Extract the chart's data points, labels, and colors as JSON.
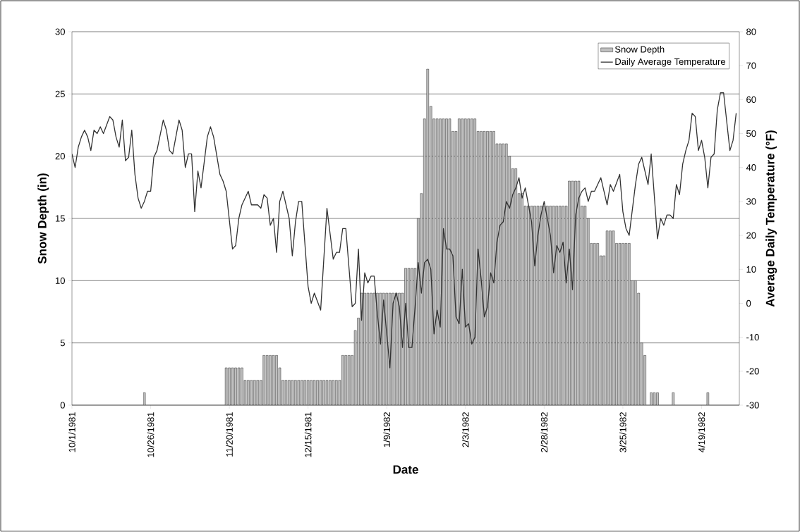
{
  "chart_data": {
    "type": "bar",
    "xlabel": "Date",
    "ylabel": "Snow Depth (in)",
    "y2label": "Average Daily Temperature (°F)",
    "xlim": [
      "1981-10-01",
      "1982-05-01"
    ],
    "xticks": [
      {
        "value": "1981-10-01",
        "label": "10/1/1981"
      },
      {
        "value": "1981-10-26",
        "label": "10/26/1981"
      },
      {
        "value": "1981-11-20",
        "label": "11/20/1981"
      },
      {
        "value": "1981-12-15",
        "label": "12/15/1981"
      },
      {
        "value": "1982-01-09",
        "label": "1/9/1982"
      },
      {
        "value": "1982-02-03",
        "label": "2/3/1982"
      },
      {
        "value": "1982-02-28",
        "label": "2/28/1982"
      },
      {
        "value": "1982-03-25",
        "label": "3/25/1982"
      },
      {
        "value": "1982-04-19",
        "label": "4/19/1982"
      }
    ],
    "ylim": [
      0,
      30
    ],
    "yticks": [
      0,
      5,
      10,
      15,
      20,
      25,
      30
    ],
    "y2lim": [
      -30,
      80
    ],
    "y2ticks": [
      -30,
      -20,
      -10,
      0,
      10,
      20,
      30,
      40,
      50,
      60,
      70,
      80
    ],
    "grid": "y",
    "legend": "top right",
    "series": [
      {
        "name": "Snow Depth",
        "color": "#c0c0c0",
        "x": [
          "1981-10-24",
          "1981-11-19",
          "1981-11-20",
          "1981-11-21",
          "1981-11-22",
          "1981-11-23",
          "1981-11-24",
          "1981-11-25",
          "1981-11-26",
          "1981-11-27",
          "1981-11-28",
          "1981-11-29",
          "1981-11-30",
          "1981-12-01",
          "1981-12-02",
          "1981-12-03",
          "1981-12-04",
          "1981-12-05",
          "1981-12-06",
          "1981-12-07",
          "1981-12-08",
          "1981-12-09",
          "1981-12-10",
          "1981-12-11",
          "1981-12-12",
          "1981-12-13",
          "1981-12-14",
          "1981-12-15",
          "1981-12-16",
          "1981-12-17",
          "1981-12-18",
          "1981-12-19",
          "1981-12-20",
          "1981-12-21",
          "1981-12-22",
          "1981-12-23",
          "1981-12-24",
          "1981-12-25",
          "1981-12-26",
          "1981-12-27",
          "1981-12-28",
          "1981-12-29",
          "1981-12-30",
          "1981-12-31",
          "1982-01-01",
          "1982-01-02",
          "1982-01-03",
          "1982-01-04",
          "1982-01-05",
          "1982-01-06",
          "1982-01-07",
          "1982-01-08",
          "1982-01-09",
          "1982-01-10",
          "1982-01-11",
          "1982-01-12",
          "1982-01-13",
          "1982-01-14",
          "1982-01-15",
          "1982-01-16",
          "1982-01-17",
          "1982-01-18",
          "1982-01-19",
          "1982-01-20",
          "1982-01-21",
          "1982-01-22",
          "1982-01-23",
          "1982-01-24",
          "1982-01-25",
          "1982-01-26",
          "1982-01-27",
          "1982-01-28",
          "1982-01-29",
          "1982-01-30",
          "1982-01-31",
          "1982-02-01",
          "1982-02-02",
          "1982-02-03",
          "1982-02-04",
          "1982-02-05",
          "1982-02-06",
          "1982-02-07",
          "1982-02-08",
          "1982-02-09",
          "1982-02-10",
          "1982-02-11",
          "1982-02-12",
          "1982-02-13",
          "1982-02-14",
          "1982-02-15",
          "1982-02-16",
          "1982-02-17",
          "1982-02-18",
          "1982-02-19",
          "1982-02-20",
          "1982-02-21",
          "1982-02-22",
          "1982-02-23",
          "1982-02-24",
          "1982-02-25",
          "1982-02-26",
          "1982-02-27",
          "1982-02-28",
          "1982-03-01",
          "1982-03-02",
          "1982-03-03",
          "1982-03-04",
          "1982-03-05",
          "1982-03-06",
          "1982-03-07",
          "1982-03-08",
          "1982-03-09",
          "1982-03-10",
          "1982-03-11",
          "1982-03-12",
          "1982-03-13",
          "1982-03-14",
          "1982-03-15",
          "1982-03-16",
          "1982-03-17",
          "1982-03-18",
          "1982-03-19",
          "1982-03-20",
          "1982-03-21",
          "1982-03-22",
          "1982-03-23",
          "1982-03-24",
          "1982-03-25",
          "1982-03-26",
          "1982-03-27",
          "1982-03-28",
          "1982-03-29",
          "1982-03-30",
          "1982-03-31",
          "1982-04-01",
          "1982-04-03",
          "1982-04-04",
          "1982-04-05",
          "1982-04-10",
          "1982-04-21"
        ],
        "values": [
          1,
          3,
          3,
          3,
          3,
          3,
          3,
          2,
          2,
          2,
          2,
          2,
          2,
          4,
          4,
          4,
          4,
          4,
          3,
          2,
          2,
          2,
          2,
          2,
          2,
          2,
          2,
          2,
          2,
          2,
          2,
          2,
          2,
          2,
          2,
          2,
          2,
          2,
          4,
          4,
          4,
          4,
          6,
          7,
          9,
          9,
          9,
          9,
          9,
          9,
          9,
          9,
          9,
          9,
          9,
          9,
          9,
          9,
          11,
          11,
          11,
          11,
          15,
          17,
          23,
          27,
          24,
          23,
          23,
          23,
          23,
          23,
          23,
          22,
          22,
          23,
          23,
          23,
          23,
          23,
          23,
          22,
          22,
          22,
          22,
          22,
          22,
          21,
          21,
          21,
          21,
          20,
          19,
          19,
          17,
          17,
          16,
          16,
          16,
          16,
          16,
          16,
          16,
          16,
          16,
          16,
          16,
          16,
          16,
          16,
          18,
          18,
          18,
          18,
          16,
          16,
          15,
          13,
          13,
          13,
          12,
          12,
          14,
          14,
          14,
          13,
          13,
          13,
          13,
          13,
          10,
          10,
          9,
          5,
          4,
          1,
          1,
          1,
          1,
          1
        ]
      },
      {
        "name": "Daily Average Temperature",
        "type": "line",
        "axis": "y2",
        "color": "#333333",
        "x": [
          "1981-10-01",
          "1981-10-02",
          "1981-10-03",
          "1981-10-04",
          "1981-10-05",
          "1981-10-06",
          "1981-10-07",
          "1981-10-08",
          "1981-10-09",
          "1981-10-10",
          "1981-10-11",
          "1981-10-13",
          "1981-10-14",
          "1981-10-15",
          "1981-10-16",
          "1981-10-17",
          "1981-10-18",
          "1981-10-19",
          "1981-10-20",
          "1981-10-21",
          "1981-10-22",
          "1981-10-23",
          "1981-10-24",
          "1981-10-25",
          "1981-10-26",
          "1981-10-27",
          "1981-10-28",
          "1981-10-30",
          "1981-10-31",
          "1981-11-01",
          "1981-11-02",
          "1981-11-04",
          "1981-11-05",
          "1981-11-06",
          "1981-11-07",
          "1981-11-08",
          "1981-11-09",
          "1981-11-10",
          "1981-11-11",
          "1981-11-13",
          "1981-11-14",
          "1981-11-15",
          "1981-11-17",
          "1981-11-18",
          "1981-11-19",
          "1981-11-21",
          "1981-11-22",
          "1981-11-23",
          "1981-11-24",
          "1981-11-26",
          "1981-11-27",
          "1981-11-29",
          "1981-11-30",
          "1981-12-01",
          "1981-12-02",
          "1981-12-03",
          "1981-12-04",
          "1981-12-05",
          "1981-12-06",
          "1981-12-07",
          "1981-12-09",
          "1981-12-10",
          "1981-12-11",
          "1981-12-12",
          "1981-12-13",
          "1981-12-15",
          "1981-12-16",
          "1981-12-17",
          "1981-12-19",
          "1981-12-21",
          "1981-12-23",
          "1981-12-24",
          "1981-12-25",
          "1981-12-26",
          "1981-12-27",
          "1981-12-29",
          "1981-12-30",
          "1981-12-31",
          "1982-01-01",
          "1982-01-02",
          "1982-01-03",
          "1982-01-04",
          "1982-01-05",
          "1982-01-06",
          "1982-01-07",
          "1982-01-08",
          "1982-01-09",
          "1982-01-10",
          "1982-01-11",
          "1982-01-12",
          "1982-01-13",
          "1982-01-14",
          "1982-01-15",
          "1982-01-16",
          "1982-01-17",
          "1982-01-18",
          "1982-01-19",
          "1982-01-20",
          "1982-01-21",
          "1982-01-22",
          "1982-01-23",
          "1982-01-24",
          "1982-01-25",
          "1982-01-26",
          "1982-01-27",
          "1982-01-28",
          "1982-01-29",
          "1982-01-30",
          "1982-01-31",
          "1982-02-01",
          "1982-02-02",
          "1982-02-03",
          "1982-02-04",
          "1982-02-05",
          "1982-02-06",
          "1982-02-07",
          "1982-02-08",
          "1982-02-09",
          "1982-02-10",
          "1982-02-11",
          "1982-02-12",
          "1982-02-13",
          "1982-02-14",
          "1982-02-15",
          "1982-02-16",
          "1982-02-17",
          "1982-02-18",
          "1982-02-19",
          "1982-02-20",
          "1982-02-21",
          "1982-02-22",
          "1982-02-23",
          "1982-02-24",
          "1982-02-25",
          "1982-02-26",
          "1982-02-27",
          "1982-02-28",
          "1982-03-01",
          "1982-03-02",
          "1982-03-03",
          "1982-03-04",
          "1982-03-05",
          "1982-03-06",
          "1982-03-07",
          "1982-03-08",
          "1982-03-09",
          "1982-03-10",
          "1982-03-11",
          "1982-03-12",
          "1982-03-13",
          "1982-03-14",
          "1982-03-15",
          "1982-03-16",
          "1982-03-18",
          "1982-03-19",
          "1982-03-20",
          "1982-03-21",
          "1982-03-22",
          "1982-03-24",
          "1982-03-25",
          "1982-03-26",
          "1982-03-27",
          "1982-03-29",
          "1982-03-30",
          "1982-03-31",
          "1982-04-02",
          "1982-04-03",
          "1982-04-05",
          "1982-04-06",
          "1982-04-07",
          "1982-04-08",
          "1982-04-09",
          "1982-04-10",
          "1982-04-11",
          "1982-04-12",
          "1982-04-13",
          "1982-04-14",
          "1982-04-15",
          "1982-04-16",
          "1982-04-17",
          "1982-04-18",
          "1982-04-19",
          "1982-04-20",
          "1982-04-21",
          "1982-04-22",
          "1982-04-23",
          "1982-04-24",
          "1982-04-25",
          "1982-04-26",
          "1982-04-28",
          "1982-04-29",
          "1982-04-30"
        ],
        "values": [
          44,
          40,
          46,
          49,
          51,
          49,
          45,
          51,
          50,
          52,
          50,
          55,
          54,
          49,
          46,
          54,
          42,
          43,
          51,
          38,
          31,
          28,
          30,
          33,
          33,
          43,
          45,
          54,
          51,
          45,
          44,
          54,
          51,
          40,
          44,
          44,
          27,
          39,
          34,
          49,
          52,
          49,
          38,
          36,
          33,
          16,
          17,
          25,
          29,
          33,
          29,
          29,
          28,
          32,
          31,
          23,
          25,
          15,
          30,
          33,
          25,
          14,
          24,
          30,
          30,
          5,
          0,
          3,
          -2,
          28,
          13,
          15,
          15,
          22,
          22,
          -1,
          0,
          16,
          -5,
          9,
          6,
          8,
          8,
          -3,
          -12,
          1,
          -9,
          -19,
          0,
          3,
          -1,
          -13,
          0,
          -13,
          -13,
          -1,
          12,
          3,
          12,
          13,
          10,
          -9,
          -2,
          -7,
          22,
          16,
          16,
          14,
          -4,
          -6,
          10,
          -7,
          -6,
          -12,
          -10,
          16,
          7,
          -4,
          -1,
          9,
          6,
          18,
          23,
          24,
          30,
          28,
          32,
          34,
          37,
          31,
          34,
          29,
          24,
          11,
          20,
          26,
          30,
          25,
          20,
          9,
          17,
          15,
          18,
          6,
          16,
          4,
          26,
          31,
          33,
          34,
          30,
          33,
          33,
          37,
          33,
          29,
          35,
          33,
          38,
          27,
          22,
          20,
          35,
          41,
          43,
          35,
          44,
          19,
          25,
          23,
          26,
          26,
          25,
          35,
          32,
          41,
          45,
          48,
          56,
          55,
          45,
          48,
          43,
          34,
          43,
          44,
          57,
          62,
          62,
          45,
          48,
          56
        ]
      }
    ]
  }
}
